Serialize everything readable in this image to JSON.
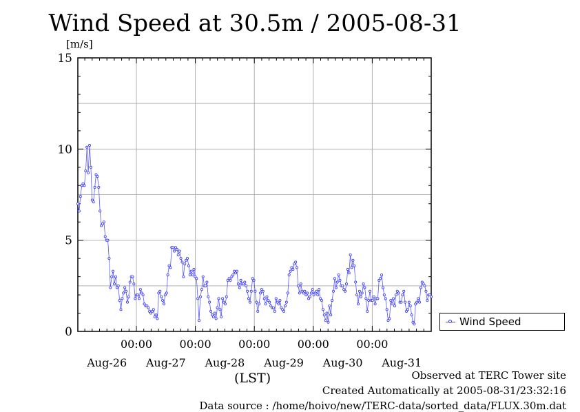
{
  "title": "Wind Speed at 30.5m / 2005-08-31",
  "unit": "[m/s]",
  "xlabel": "(LST)",
  "legend": {
    "label": "Wind Speed"
  },
  "footer": {
    "observed": "Observed at TERC Tower site",
    "created": "Created Automatically at 2005-08-31/23:32:16",
    "source": "Data source : /home/hoivo/new/TERC-data/sorted_data/FLUX.30m.dat"
  },
  "colors": {
    "series": "#3333ff",
    "grid": "#b0b0b0"
  },
  "chart_data": {
    "type": "line",
    "ylim": [
      0,
      15
    ],
    "yticks": [
      "0",
      "5",
      "10",
      "15"
    ],
    "xlim_days": 6,
    "xticks_time": [
      "00:00",
      "00:00",
      "00:00",
      "00:00",
      "00:00"
    ],
    "xticks_date": [
      "Aug-26",
      "Aug-27",
      "Aug-28",
      "Aug-29",
      "Aug-30",
      "Aug-31"
    ],
    "grid": true,
    "legend_position": "right",
    "series": [
      {
        "name": "Wind Speed",
        "values": [
          7.0,
          6.6,
          7.4,
          8.0,
          8.1,
          8.0,
          8.8,
          10.1,
          8.7,
          10.2,
          9.0,
          7.2,
          7.1,
          7.9,
          8.6,
          8.5,
          7.9,
          6.6,
          5.8,
          5.9,
          6.0,
          5.2,
          5.0,
          5.0,
          4.0,
          2.4,
          3.0,
          3.3,
          2.6,
          3.0,
          2.4,
          2.5,
          1.7,
          1.2,
          1.8,
          2.1,
          2.4,
          2.2,
          1.6,
          1.9,
          2.7,
          3.0,
          3.0,
          2.6,
          1.8,
          2.0,
          2.0,
          1.8,
          2.3,
          2.1,
          2.0,
          1.5,
          1.4,
          1.4,
          1.3,
          1.1,
          1.0,
          1.1,
          1.2,
          0.8,
          0.9,
          0.7,
          2.1,
          2.2,
          1.9,
          1.7,
          1.5,
          2.0,
          2.1,
          3.1,
          3.6,
          3.5,
          4.6,
          4.6,
          4.4,
          4.6,
          4.5,
          4.2,
          4.4,
          4.0,
          3.8,
          3.0,
          3.7,
          3.9,
          4.0,
          3.6,
          3.1,
          3.3,
          3.1,
          3.4,
          3.0,
          2.9,
          1.8,
          0.6,
          1.9,
          2.3,
          3.0,
          2.5,
          2.5,
          2.7,
          1.9,
          1.6,
          1.1,
          0.9,
          0.8,
          1.0,
          0.7,
          1.3,
          1.8,
          1.2,
          0.8,
          1.8,
          1.6,
          1.5,
          1.9,
          2.8,
          2.9,
          2.8,
          3.0,
          3.1,
          3.3,
          3.2,
          3.3,
          2.6,
          2.4,
          2.8,
          2.6,
          2.6,
          2.7,
          2.5,
          2.2,
          1.8,
          1.6,
          2.2,
          2.9,
          2.8,
          2.2,
          1.6,
          1.1,
          1.5,
          2.1,
          2.3,
          2.2,
          1.8,
          1.5,
          1.9,
          1.7,
          1.6,
          1.4,
          1.3,
          1.3,
          1.1,
          1.8,
          1.6,
          1.5,
          1.7,
          1.3,
          1.2,
          1.1,
          1.4,
          1.6,
          2.1,
          3.1,
          3.3,
          3.5,
          3.4,
          3.7,
          3.8,
          3.5,
          2.5,
          2.1,
          2.6,
          2.2,
          2.1,
          2.2,
          2.0,
          2.1,
          1.8,
          1.9,
          2.1,
          2.3,
          2.0,
          2.1,
          2.2,
          2.0,
          2.3,
          1.8,
          1.7,
          1.2,
          0.9,
          0.6,
          1.0,
          0.5,
          1.4,
          0.9,
          1.7,
          2.2,
          2.9,
          2.4,
          2.7,
          3.1,
          2.8,
          2.5,
          2.5,
          2.3,
          2.2,
          2.6,
          3.4,
          3.2,
          4.2,
          3.5,
          3.9,
          3.6,
          2.7,
          2.0,
          1.5,
          2.2,
          1.9,
          2.1,
          2.6,
          2.4,
          1.8,
          1.1,
          1.7,
          2.2,
          1.7,
          1.7,
          1.9,
          1.5,
          1.8,
          1.8,
          2.8,
          2.9,
          3.1,
          2.4,
          2.0,
          1.8,
          1.2,
          0.6,
          0.7,
          1.7,
          1.5,
          1.8,
          1.4,
          2.0,
          2.2,
          2.1,
          1.6,
          1.6,
          2.0,
          2.2,
          1.6,
          1.1,
          1.2,
          1.6,
          1.4,
          0.9,
          0.5,
          0.4,
          1.5,
          1.6,
          1.8,
          1.6,
          2.4,
          2.7,
          2.6,
          2.5,
          2.2,
          1.7,
          2.0,
          2.0,
          1.9
        ]
      }
    ]
  }
}
